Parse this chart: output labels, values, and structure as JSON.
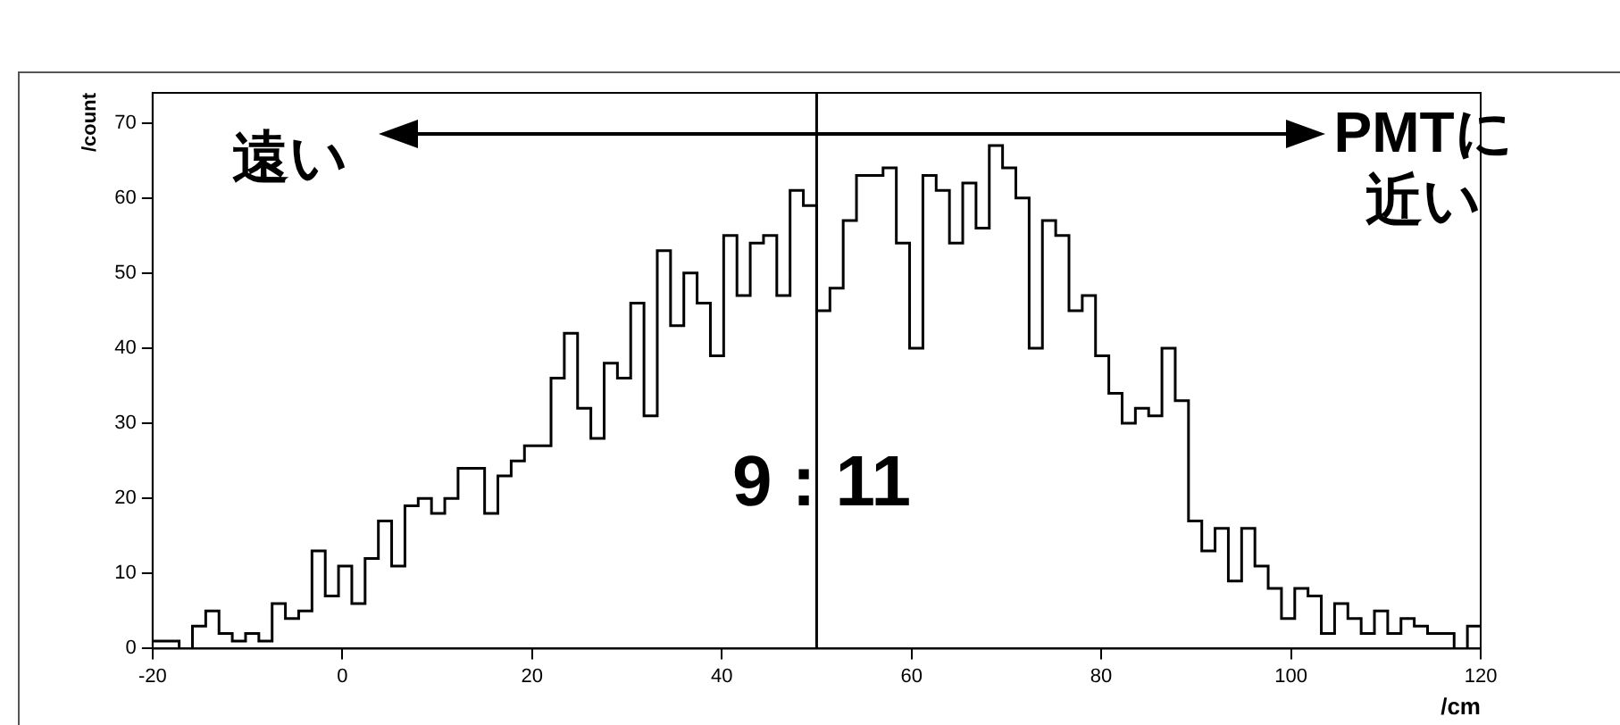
{
  "chart_data": {
    "type": "histogram",
    "xlabel": "/cm",
    "ylabel": "/count",
    "color": "#000000",
    "bins": [
      -20,
      -18.6,
      -17.2,
      -15.8,
      -14.4,
      -13,
      -11.6,
      -10.2,
      -8.8,
      -7.4,
      -6,
      -4.6,
      -3.2,
      -1.8,
      -0.4,
      1,
      2.4,
      3.8,
      5.2,
      6.6,
      8,
      9.4,
      10.8,
      12.2,
      13.6,
      15,
      16.4,
      17.8,
      19.2,
      20.6,
      22,
      23.4,
      24.8,
      26.2,
      27.6,
      29,
      30.4,
      31.8,
      33.2,
      34.6,
      36,
      37.4,
      38.8,
      40.2,
      41.6,
      43,
      44.4,
      45.8,
      47.2,
      48.6,
      50,
      51.4,
      52.8,
      54.2,
      55.6,
      57,
      58.4,
      59.8,
      61.2,
      62.6,
      64,
      65.4,
      66.8,
      68.2,
      69.6,
      71,
      72.4,
      73.8,
      75.2,
      76.6,
      78,
      79.4,
      80.8,
      82.2,
      83.6,
      85,
      86.4,
      87.8,
      89.2,
      90.6,
      92,
      93.4,
      94.8,
      96.2,
      97.6,
      99,
      100.4,
      101.8,
      103.2,
      104.6,
      106,
      107.4,
      108.8,
      110.2,
      111.6,
      113,
      114.4,
      115.8,
      117.2,
      118.6,
      120
    ],
    "values": [
      1,
      1,
      0,
      3,
      5,
      2,
      1,
      2,
      1,
      6,
      4,
      5,
      13,
      7,
      11,
      6,
      12,
      17,
      11,
      19,
      20,
      18,
      20,
      24,
      24,
      18,
      23,
      25,
      27,
      27,
      36,
      42,
      32,
      28,
      38,
      36,
      46,
      31,
      53,
      43,
      50,
      46,
      39,
      55,
      47,
      54,
      55,
      47,
      61,
      59,
      45,
      48,
      57,
      63,
      63,
      64,
      54,
      40,
      63,
      61,
      54,
      62,
      56,
      67,
      64,
      60,
      40,
      57,
      55,
      45,
      47,
      39,
      34,
      30,
      32,
      31,
      40,
      33,
      17,
      13,
      16,
      9,
      16,
      11,
      8,
      4,
      8,
      7,
      2,
      6,
      4,
      2,
      5,
      2,
      4,
      3,
      2,
      2,
      0,
      3
    ],
    "xlim": [
      -20,
      120
    ],
    "ylim": [
      0,
      74
    ],
    "xticks": [
      -20,
      0,
      20,
      40,
      60,
      80,
      100,
      120
    ],
    "yticks": [
      0,
      10,
      20,
      30,
      40,
      50,
      60,
      70
    ],
    "ref_lines": [
      {
        "axis": "x",
        "value": 50,
        "color": "#000000"
      }
    ],
    "annotations": [
      "遠い",
      "PMTに近い",
      "9 : 11"
    ]
  }
}
